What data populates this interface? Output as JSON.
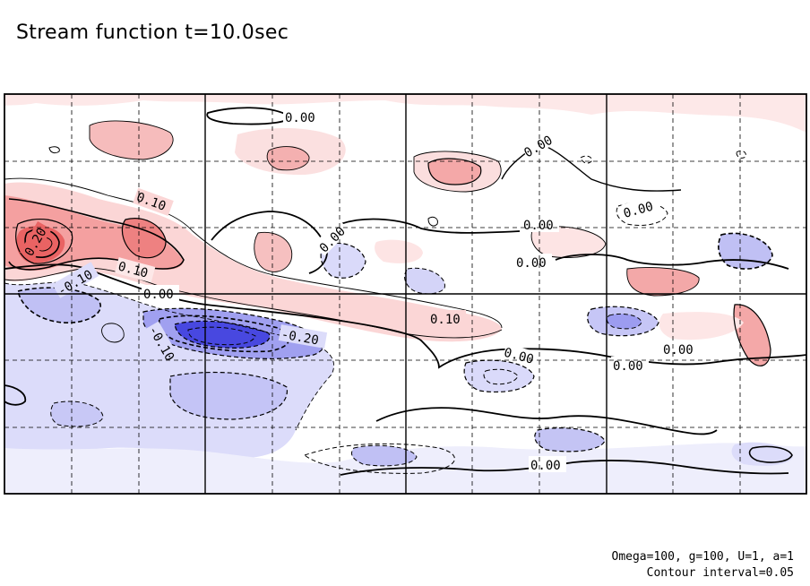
{
  "title": "Stream function t=10.0sec",
  "footer": {
    "params": "Omega=100, g=100, U=1, a=1",
    "interval": "Contour interval=0.05"
  },
  "chart_data": {
    "type": "heatmap",
    "title": "Stream function t=10.0sec",
    "contour_interval": 0.05,
    "grid": true,
    "colors": {
      "positive": "#e85050",
      "negative": "#3b3bdc",
      "background": "#ffffff"
    },
    "contour_labels": [
      "0.00",
      "0.00",
      "0.00",
      "0.00",
      "0.00",
      "0.00",
      "0.00",
      "0.00",
      "0.00",
      "0.00",
      "0.10",
      "0.10",
      "0.10",
      "0.20",
      "-0.10",
      "-0.10",
      "-0.20"
    ],
    "features": [
      {
        "sign": "positive",
        "peak": 0.25
      },
      {
        "sign": "positive",
        "peak": 0.15
      },
      {
        "sign": "positive",
        "peak": 0.1
      },
      {
        "sign": "negative",
        "peak": -0.3
      },
      {
        "sign": "negative",
        "peak": -0.1
      },
      {
        "sign": "positive",
        "peak": 0.08
      },
      {
        "sign": "negative",
        "peak": -0.08
      }
    ]
  }
}
